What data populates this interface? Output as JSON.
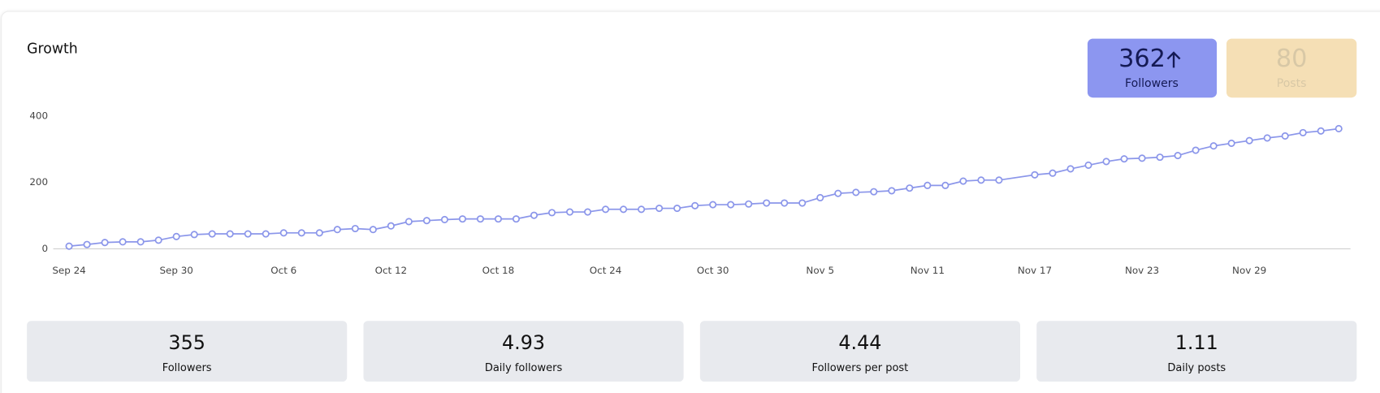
{
  "title": "Growth",
  "badges": [
    {
      "value": 362,
      "label": "Followers"
    },
    {
      "value": 80,
      "label": "Posts"
    }
  ],
  "stats": [
    {
      "value": 355,
      "label": "Followers"
    },
    {
      "value": 4.93,
      "label": "Daily followers"
    },
    {
      "value": 4.44,
      "label": "Followers per post"
    },
    {
      "value": 1.11,
      "label": "Daily posts"
    }
  ],
  "chart_data": {
    "type": "line",
    "color": "#8b96ea",
    "x": [
      "Sep 24",
      "Sep 25",
      "Sep 26",
      "Sep 27",
      "Sep 28",
      "Sep 29",
      "Sep 30",
      "Oct 1",
      "Oct 2",
      "Oct 3",
      "Oct 4",
      "Oct 5",
      "Oct 6",
      "Oct 7",
      "Oct 8",
      "Oct 9",
      "Oct 10",
      "Oct 11",
      "Oct 12",
      "Oct 13",
      "Oct 14",
      "Oct 15",
      "Oct 16",
      "Oct 17",
      "Oct 18",
      "Oct 19",
      "Oct 20",
      "Oct 21",
      "Oct 22",
      "Oct 23",
      "Oct 24",
      "Oct 25",
      "Oct 26",
      "Oct 27",
      "Oct 28",
      "Oct 29",
      "Oct 30",
      "Oct 31",
      "Nov 1",
      "Nov 2",
      "Nov 3",
      "Nov 4",
      "Nov 5",
      "Nov 6",
      "Nov 7",
      "Nov 8",
      "Nov 9",
      "Nov 10",
      "Nov 11",
      "Nov 12",
      "Nov 13",
      "Nov 14",
      "Nov 15",
      "Nov 17",
      "Nov 18",
      "Nov 19",
      "Nov 20",
      "Nov 21",
      "Nov 22",
      "Nov 23",
      "Nov 24",
      "Nov 25",
      "Nov 26",
      "Nov 27",
      "Nov 28",
      "Nov 29",
      "Nov 30",
      "Dec 1",
      "Dec 2",
      "Dec 3",
      "Dec 4"
    ],
    "values": [
      8,
      13,
      19,
      21,
      21,
      26,
      37,
      43,
      45,
      45,
      45,
      45,
      48,
      48,
      48,
      58,
      61,
      58,
      69,
      82,
      85,
      88,
      90,
      90,
      90,
      90,
      101,
      109,
      111,
      111,
      119,
      119,
      119,
      122,
      122,
      130,
      133,
      133,
      135,
      138,
      138,
      138,
      154,
      167,
      170,
      172,
      175,
      183,
      191,
      191,
      204,
      207,
      207,
      223,
      228,
      241,
      252,
      263,
      271,
      273,
      276,
      281,
      297,
      310,
      318,
      326,
      334,
      340,
      350,
      355,
      362
    ],
    "xlim": [
      "Sep 24",
      "Dec 5"
    ],
    "xticks": [
      "Sep 24",
      "Sep 30",
      "Oct 6",
      "Oct 12",
      "Oct 18",
      "Oct 24",
      "Oct 30",
      "Nov 5",
      "Nov 11",
      "Nov 17",
      "Nov 23",
      "Nov 29"
    ],
    "ylim": [
      0,
      400
    ],
    "yticks": [
      0,
      200,
      400
    ],
    "grid": false
  }
}
